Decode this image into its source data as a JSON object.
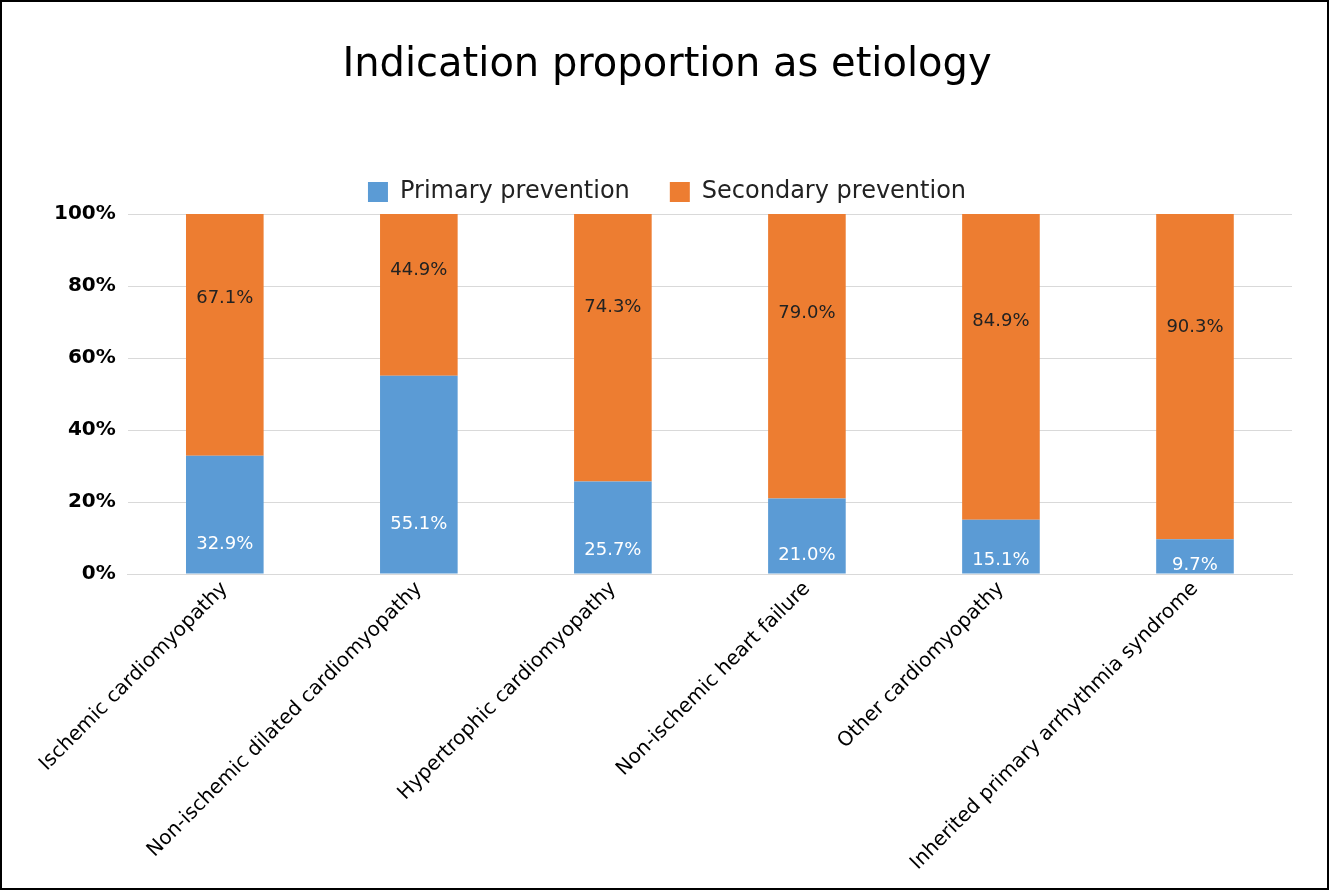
{
  "chart_data": {
    "type": "bar",
    "title": "Indication proportion as etiology",
    "stacked": true,
    "categories": [
      "Ischemic cardiomyopathy",
      "Non-ischemic dilated cardiomyopathy",
      "Hypertrophic cardiomyopathy",
      "Non-ischemic heart failure",
      "Other cardiomyopathy",
      "Inherited primary arrhythmia syndrome"
    ],
    "series": [
      {
        "name": "Primary prevention",
        "color": "#5b9bd5",
        "values": [
          32.9,
          55.1,
          25.7,
          21.0,
          15.1,
          9.7
        ],
        "value_labels": [
          "32.9%",
          "55.1%",
          "25.7%",
          "21.0%",
          "15.1%",
          "9.7%"
        ]
      },
      {
        "name": "Secondary prevention",
        "color": "#ed7d31",
        "values": [
          67.1,
          44.9,
          74.3,
          79.0,
          84.9,
          90.3
        ],
        "value_labels": [
          "67.1%",
          "44.9%",
          "74.3%",
          "79.0%",
          "84.9%",
          "90.3%"
        ]
      }
    ],
    "ylim": [
      0,
      100
    ],
    "yticks": [
      {
        "value": 0,
        "label": "0%"
      },
      {
        "value": 20,
        "label": "20%"
      },
      {
        "value": 40,
        "label": "40%"
      },
      {
        "value": 60,
        "label": "60%"
      },
      {
        "value": 80,
        "label": "80%"
      },
      {
        "value": 100,
        "label": "100%"
      }
    ],
    "grid": "y",
    "legend": "top"
  }
}
